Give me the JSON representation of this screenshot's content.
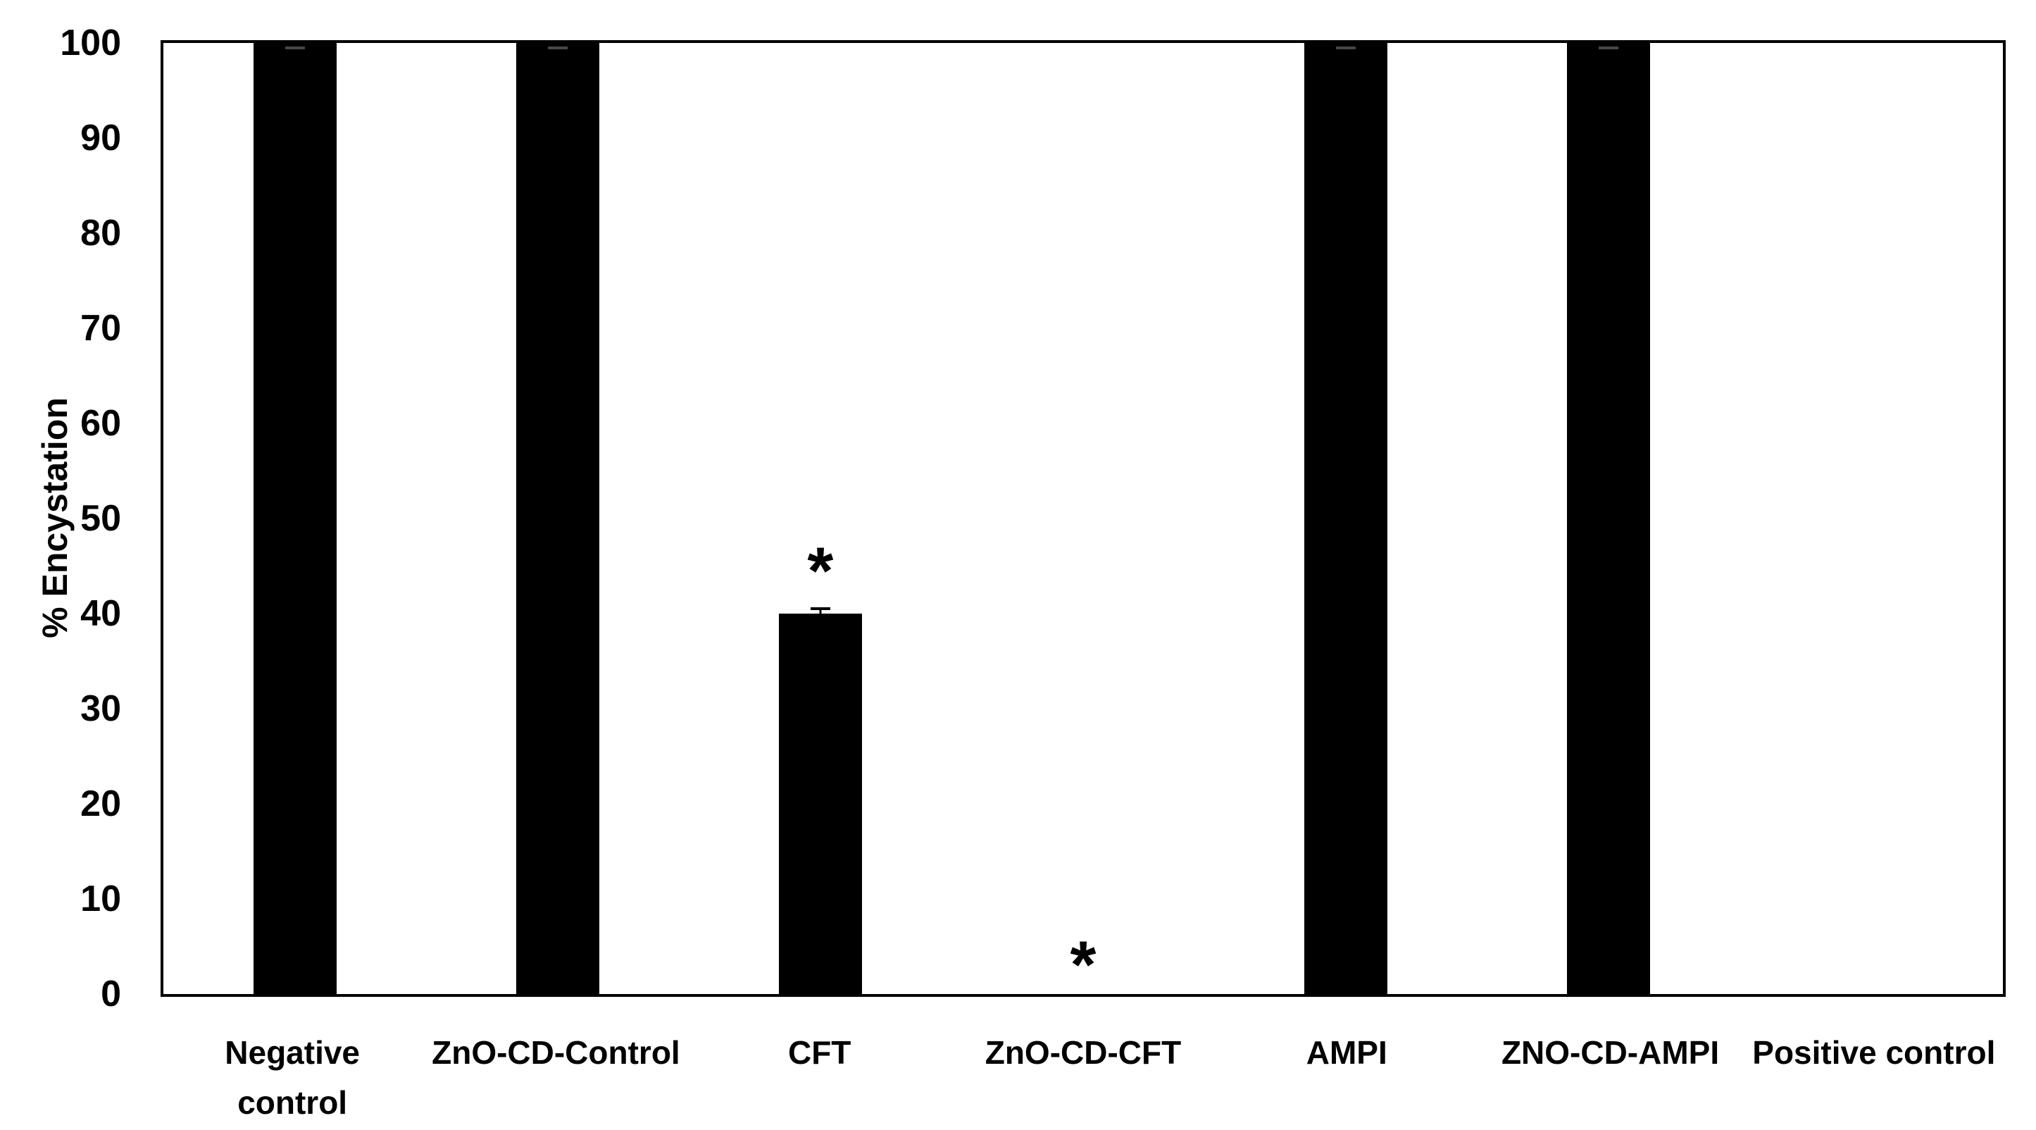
{
  "chart_data": {
    "type": "bar",
    "title": "",
    "xlabel": "",
    "ylabel": "% Encystation",
    "ylim": [
      0,
      100
    ],
    "yticks": [
      0,
      10,
      20,
      30,
      40,
      50,
      60,
      70,
      80,
      90,
      100
    ],
    "grid": false,
    "legend_position": "none",
    "plot_border": true,
    "bar_color": "#000000",
    "error_cap_color_on_bar": "#474747",
    "error_cap_color": "#000000",
    "background_color": "#ffffff",
    "categories": [
      "Negative\ncontrol",
      "ZnO-CD-Control",
      "CFT",
      "ZnO-CD-CFT",
      "AMPI",
      "ZNO-CD-AMPI",
      "Positive control"
    ],
    "values": [
      100,
      100,
      40,
      0,
      100,
      100,
      0
    ],
    "errors": [
      0.5,
      0.5,
      0.7,
      0,
      0.5,
      0.5,
      0
    ],
    "annotations": [
      {
        "category_index": 2,
        "symbol": "*",
        "value": 45.7
      },
      {
        "category_index": 3,
        "symbol": "*",
        "value": 4.3
      }
    ]
  }
}
